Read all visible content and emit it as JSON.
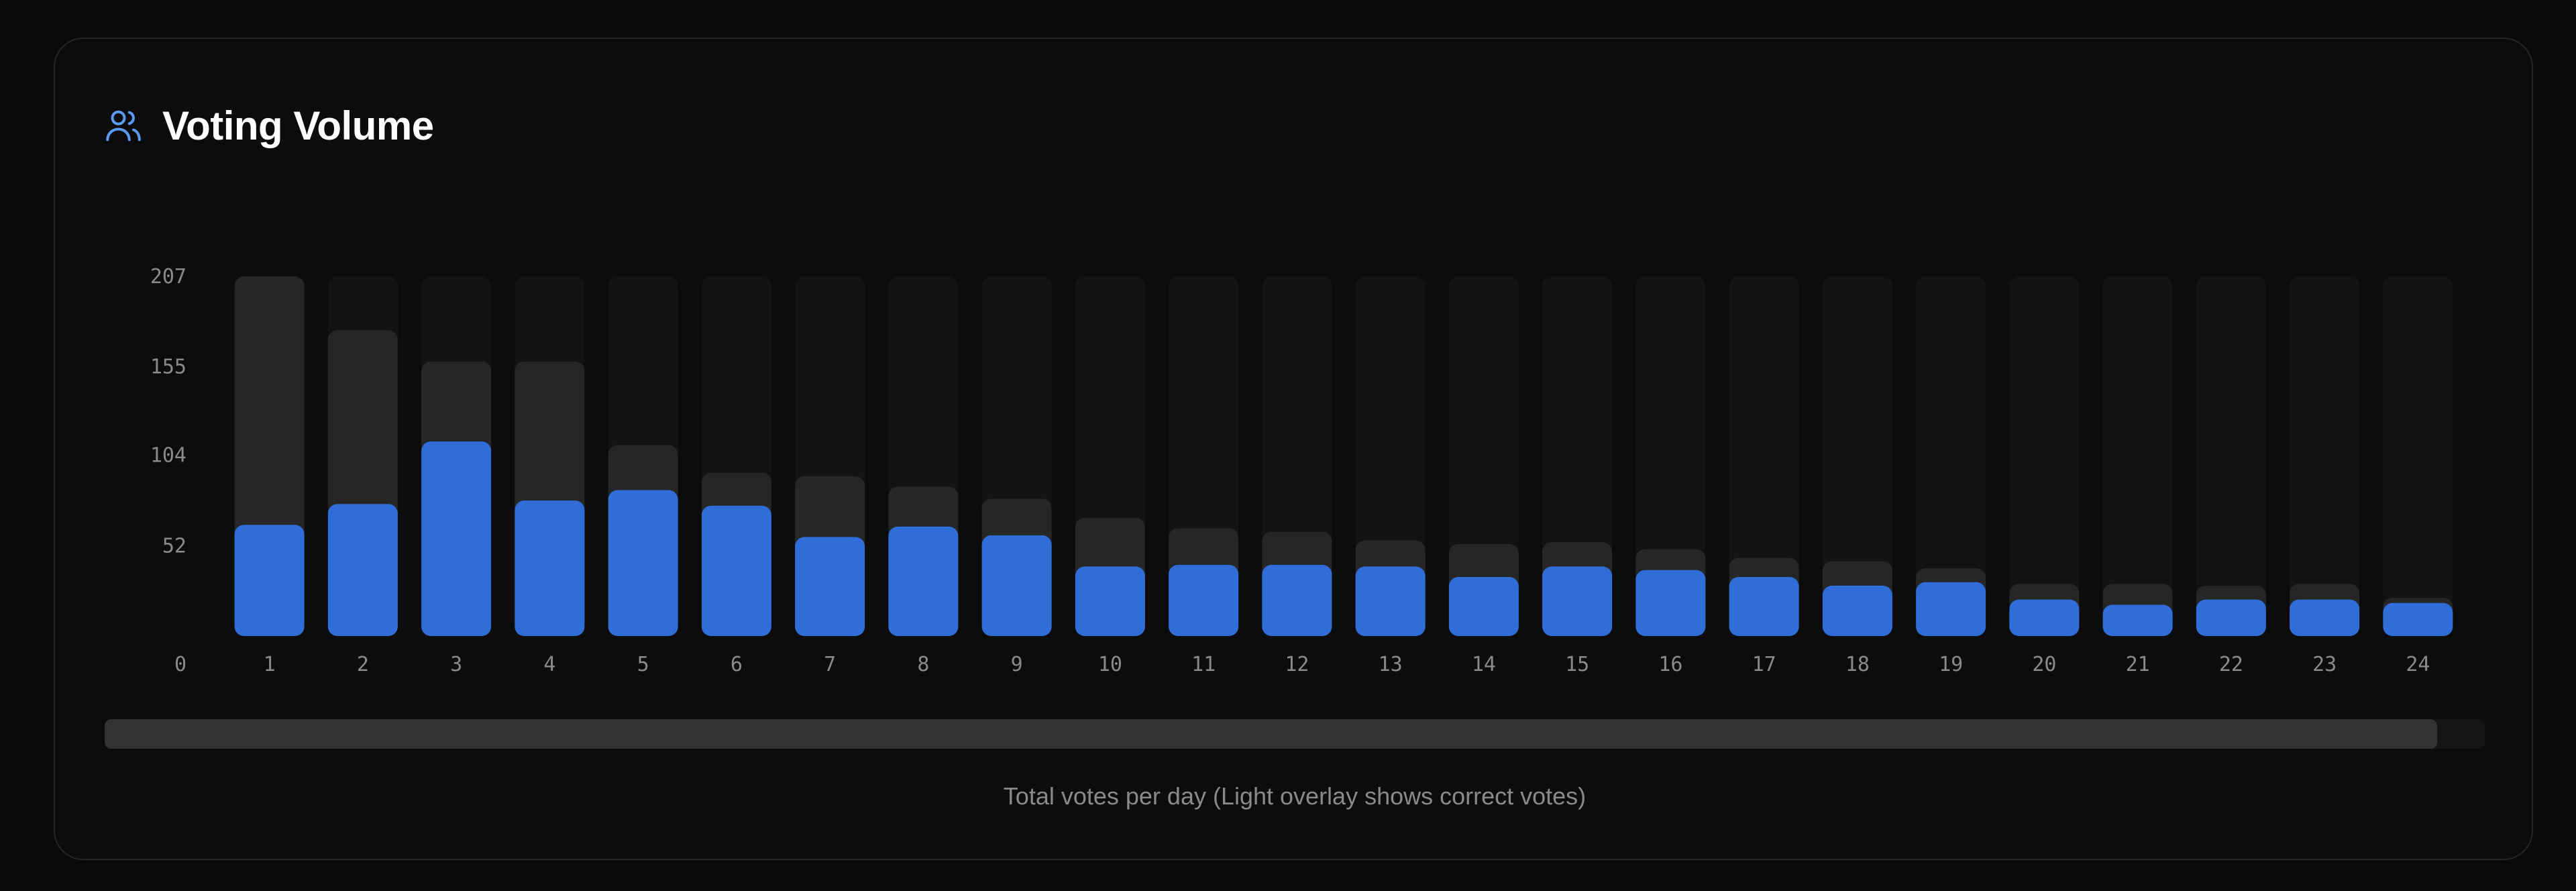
{
  "card": {
    "title": "Voting Volume",
    "icon": "users-icon",
    "caption": "Total votes per day (Light overlay shows correct votes)"
  },
  "scrollbar": {
    "visible_fraction": 0.98
  },
  "colors": {
    "correct": "#2f6ed8",
    "total": "#262626",
    "track": "#131313",
    "accent_icon": "#5b9cf2"
  },
  "chart_data": {
    "type": "bar",
    "categories": [
      "1",
      "2",
      "3",
      "4",
      "5",
      "6",
      "7",
      "8",
      "9",
      "10",
      "11",
      "12",
      "13",
      "14",
      "15",
      "16",
      "17",
      "18",
      "19",
      "20",
      "21",
      "22",
      "23",
      "24"
    ],
    "series": [
      {
        "values": [
          207,
          176,
          158,
          158,
          110,
          94,
          92,
          86,
          79,
          68,
          62,
          60,
          55,
          53,
          54,
          50,
          45,
          43,
          39,
          30,
          30,
          29,
          30,
          22
        ]
      },
      {
        "values": [
          64,
          76,
          112,
          78,
          84,
          75,
          57,
          63,
          58,
          40,
          41,
          41,
          40,
          34,
          40,
          38,
          34,
          29,
          31,
          21,
          18,
          21,
          21,
          19
        ]
      }
    ],
    "yticks": [
      0,
      52,
      104,
      155,
      207
    ],
    "ylim": [
      0,
      207
    ],
    "xlabel": "",
    "ylabel": "",
    "grid": false,
    "legend": "none"
  }
}
